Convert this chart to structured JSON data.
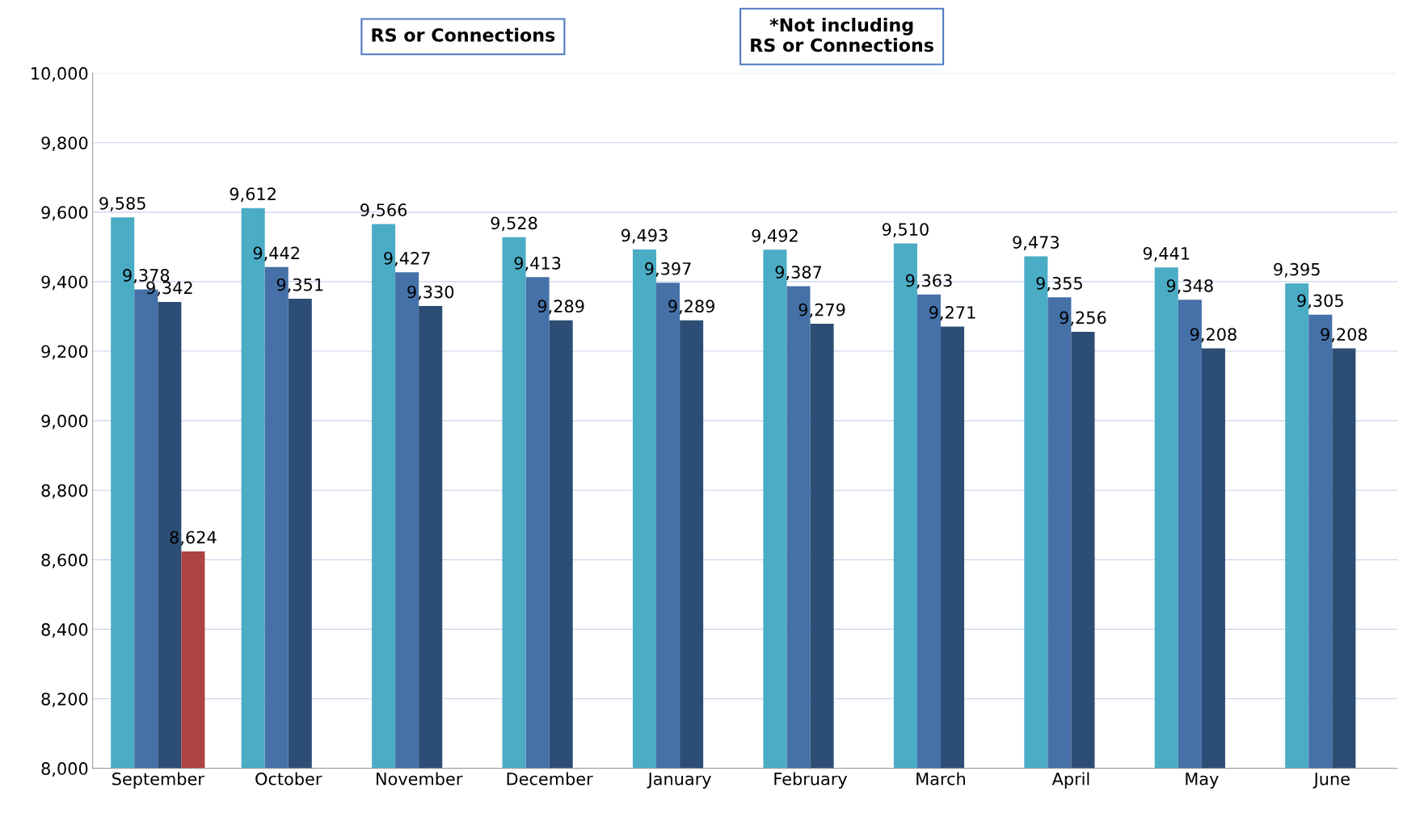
{
  "chart_data": {
    "type": "bar",
    "categories": [
      "September",
      "October",
      "November",
      "December",
      "January",
      "February",
      "March",
      "April",
      "May",
      "June"
    ],
    "series": [
      {
        "color": "#4bacc6",
        "values": [
          9585,
          9612,
          9566,
          9528,
          9493,
          9492,
          9510,
          9473,
          9441,
          9395
        ],
        "value_labels": [
          "9,585",
          "9,612",
          "9,566",
          "9,528",
          "9,493",
          "9,492",
          "9,510",
          "9,473",
          "9,441",
          "9,395"
        ]
      },
      {
        "color": "#4571a8",
        "values": [
          9378,
          9442,
          9427,
          9413,
          9397,
          9387,
          9363,
          9355,
          9348,
          9305
        ],
        "value_labels": [
          "9,378",
          "9,442",
          "9,427",
          "9,413",
          "9,397",
          "9,387",
          "9,363",
          "9,355",
          "9,348",
          "9,305"
        ]
      },
      {
        "color": "#2c4d75",
        "values": [
          9342,
          9351,
          9330,
          9289,
          9289,
          9279,
          9271,
          9256,
          9208,
          9208
        ],
        "value_labels": [
          "9,342",
          "9,351",
          "9,330",
          "9,289",
          "9,289",
          "9,279",
          "9,271",
          "9,256",
          "9,208",
          "9,208"
        ]
      },
      {
        "color": "#ab4442",
        "values": [
          8624,
          null,
          null,
          null,
          null,
          null,
          null,
          null,
          null,
          null
        ],
        "value_labels": [
          "8,624",
          null,
          null,
          null,
          null,
          null,
          null,
          null,
          null,
          null
        ]
      }
    ],
    "ylim": [
      8000,
      10000
    ],
    "yticks": [
      {
        "value": 8000,
        "label": "8,000"
      },
      {
        "value": 8200,
        "label": "8,200"
      },
      {
        "value": 8400,
        "label": "8,400"
      },
      {
        "value": 8600,
        "label": "8,600"
      },
      {
        "value": 8800,
        "label": "8,800"
      },
      {
        "value": 9000,
        "label": "9,000"
      },
      {
        "value": 9200,
        "label": "9,200"
      },
      {
        "value": 9400,
        "label": "9,400"
      },
      {
        "value": 9600,
        "label": "9,600"
      },
      {
        "value": 9800,
        "label": "9,800"
      },
      {
        "value": 10000,
        "label": "10,000"
      }
    ],
    "grid": "y",
    "annotations": [
      "RS or Connections",
      "*Not including\nRS or Connections"
    ]
  }
}
